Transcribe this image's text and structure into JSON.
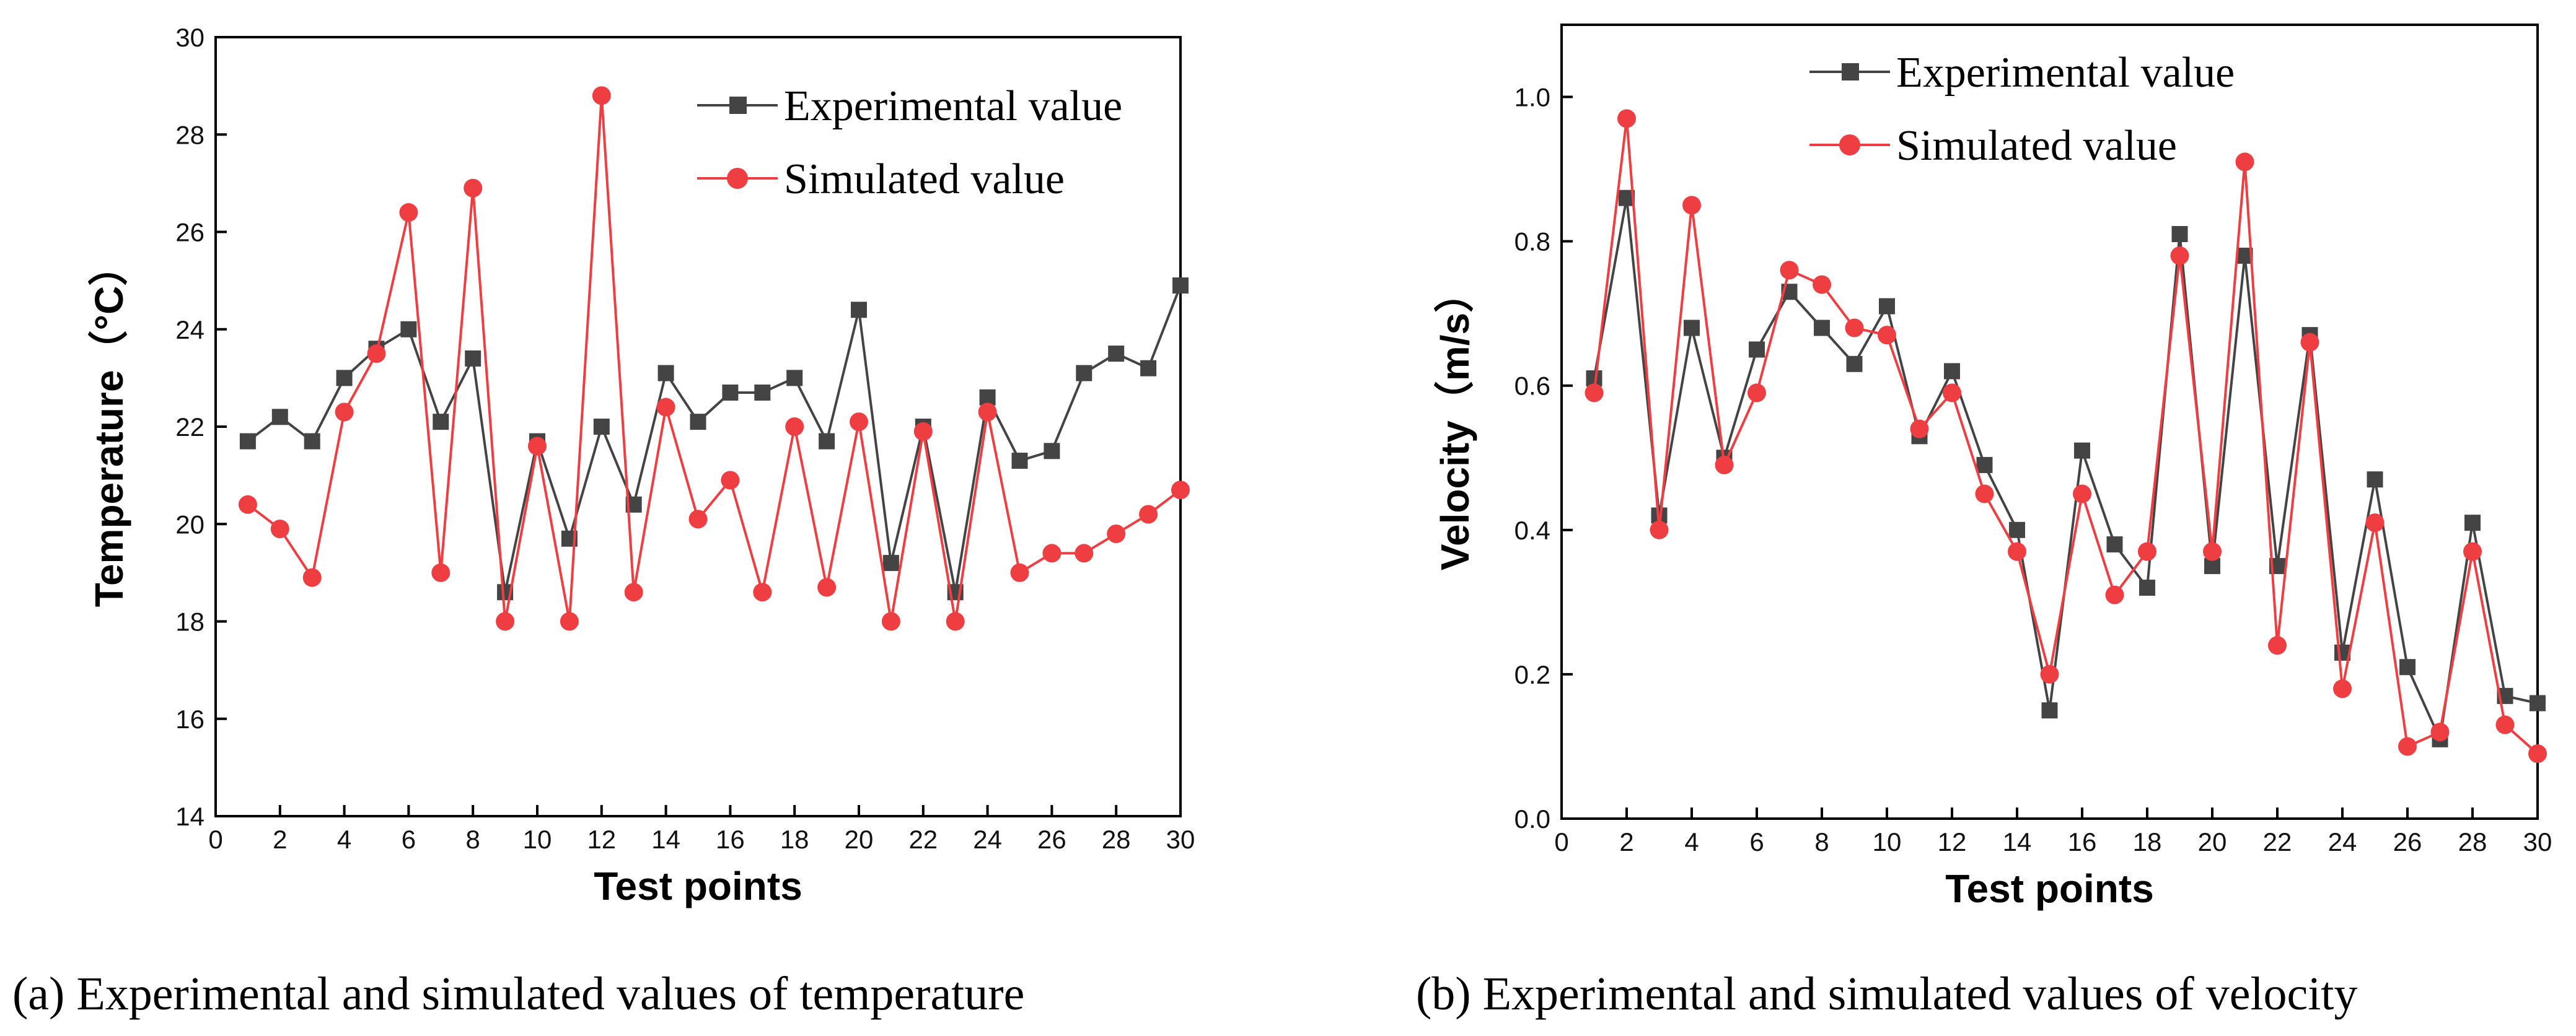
{
  "chart_data": [
    {
      "type": "line",
      "caption": "(a) Experimental and simulated values of temperature",
      "xlabel": "Test points",
      "ylabel": "Temperature（°C）",
      "xlim": [
        0,
        30
      ],
      "ylim": [
        14,
        30
      ],
      "xticks": [
        0,
        2,
        4,
        6,
        8,
        10,
        12,
        14,
        16,
        18,
        20,
        22,
        24,
        26,
        28,
        30
      ],
      "yticks": [
        14,
        16,
        18,
        20,
        22,
        24,
        26,
        28,
        30
      ],
      "ytick_decimals": 0,
      "legend_position": "top-right",
      "x": [
        1,
        2,
        3,
        4,
        5,
        6,
        7,
        8,
        9,
        10,
        11,
        12,
        13,
        14,
        15,
        16,
        17,
        18,
        19,
        20,
        21,
        22,
        23,
        24,
        25,
        26,
        27,
        28,
        29,
        30
      ],
      "series": [
        {
          "name": "Experimental value",
          "color": "#444444",
          "marker": "square",
          "values": [
            21.7,
            22.2,
            21.7,
            23.0,
            23.6,
            24.0,
            22.1,
            23.4,
            18.6,
            21.7,
            19.7,
            22.0,
            20.4,
            23.1,
            22.1,
            22.7,
            22.7,
            23.0,
            21.7,
            24.4,
            19.2,
            22.0,
            18.6,
            22.6,
            21.3,
            21.5,
            23.1,
            23.5,
            23.2,
            24.9
          ]
        },
        {
          "name": "Simulated value",
          "color": "#ef3e42",
          "marker": "circle",
          "values": [
            20.4,
            19.9,
            18.9,
            22.3,
            23.5,
            26.4,
            19.0,
            26.9,
            18.0,
            21.6,
            18.0,
            28.8,
            18.6,
            22.4,
            20.1,
            20.9,
            18.6,
            22.0,
            18.7,
            22.1,
            18.0,
            21.9,
            18.0,
            22.3,
            19.0,
            19.4,
            19.4,
            19.8,
            20.2,
            20.7
          ]
        }
      ]
    },
    {
      "type": "line",
      "caption": "(b) Experimental and simulated values of velocity",
      "xlabel": "Test points",
      "ylabel": "Velocity（m/s）",
      "xlim": [
        0,
        30
      ],
      "ylim": [
        0.0,
        1.1
      ],
      "xticks": [
        0,
        2,
        4,
        6,
        8,
        10,
        12,
        14,
        16,
        18,
        20,
        22,
        24,
        26,
        28,
        30
      ],
      "yticks": [
        0.0,
        0.2,
        0.4,
        0.6,
        0.8,
        1.0
      ],
      "ytick_decimals": 1,
      "legend_position": "top-center",
      "x": [
        1,
        2,
        3,
        4,
        5,
        6,
        7,
        8,
        9,
        10,
        11,
        12,
        13,
        14,
        15,
        16,
        17,
        18,
        19,
        20,
        21,
        22,
        23,
        24,
        25,
        26,
        27,
        28,
        29,
        30
      ],
      "series": [
        {
          "name": "Experimental value",
          "color": "#444444",
          "marker": "square",
          "values": [
            0.61,
            0.86,
            0.42,
            0.68,
            0.5,
            0.65,
            0.73,
            0.68,
            0.63,
            0.71,
            0.53,
            0.62,
            0.49,
            0.4,
            0.15,
            0.51,
            0.38,
            0.32,
            0.81,
            0.35,
            0.78,
            0.35,
            0.67,
            0.23,
            0.47,
            0.21,
            0.11,
            0.41,
            0.17,
            0.16
          ]
        },
        {
          "name": "Simulated value",
          "color": "#ef3e42",
          "marker": "circle",
          "values": [
            0.59,
            0.97,
            0.4,
            0.85,
            0.49,
            0.59,
            0.76,
            0.74,
            0.68,
            0.67,
            0.54,
            0.59,
            0.45,
            0.37,
            0.2,
            0.45,
            0.31,
            0.37,
            0.78,
            0.37,
            0.91,
            0.24,
            0.66,
            0.18,
            0.41,
            0.1,
            0.12,
            0.37,
            0.13,
            0.09
          ]
        }
      ]
    }
  ]
}
